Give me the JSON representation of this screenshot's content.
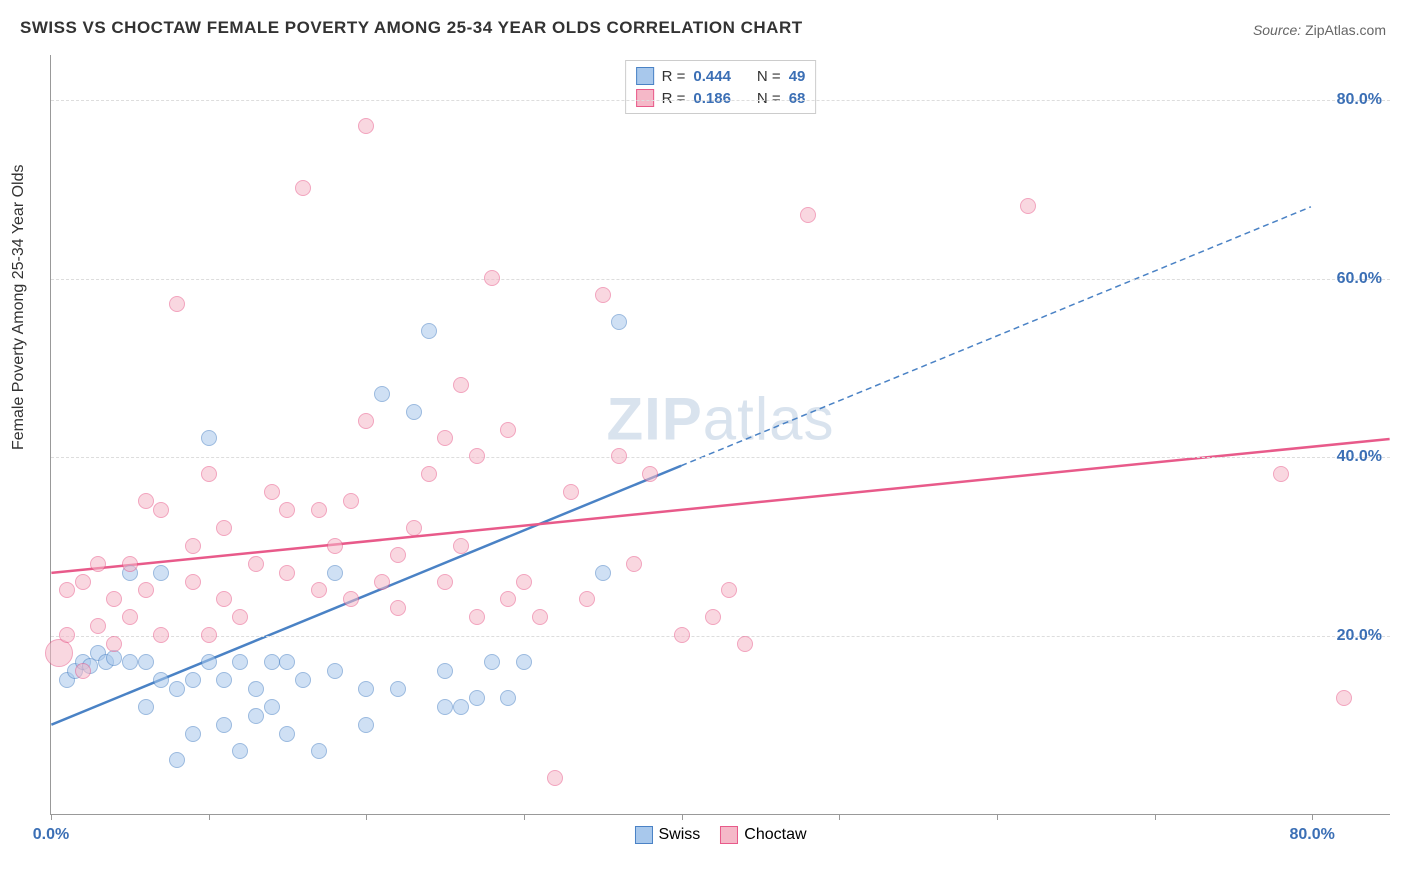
{
  "title": "SWISS VS CHOCTAW FEMALE POVERTY AMONG 25-34 YEAR OLDS CORRELATION CHART",
  "source": {
    "prefix": "Source: ",
    "name": "ZipAtlas.com"
  },
  "y_axis_label": "Female Poverty Among 25-34 Year Olds",
  "watermark": {
    "part1": "ZIP",
    "part2": "atlas"
  },
  "chart": {
    "type": "scatter",
    "xlim": [
      0,
      85
    ],
    "ylim": [
      0,
      85
    ],
    "x_ticks": [
      0,
      10,
      20,
      30,
      40,
      50,
      60,
      70,
      80
    ],
    "x_tick_labels": {
      "0": "0.0%",
      "80": "80.0%"
    },
    "y_gridlines": [
      20,
      40,
      60,
      80
    ],
    "y_tick_labels": {
      "20": "20.0%",
      "40": "40.0%",
      "60": "60.0%",
      "80": "80.0%"
    },
    "tick_label_color": "#3b6fb5",
    "grid_color": "#dddddd",
    "background_color": "#ffffff",
    "marker_radius": 8,
    "marker_opacity": 0.55,
    "series": [
      {
        "name": "Swiss",
        "color_fill": "#a8c8ec",
        "color_stroke": "#4a82c5",
        "r_value": "0.444",
        "n_value": "49",
        "trend": {
          "x1": 0,
          "y1": 10,
          "x2": 40,
          "y2": 39,
          "dash_extend_x": 80,
          "dash_extend_y": 68
        },
        "points": [
          {
            "x": 1,
            "y": 15
          },
          {
            "x": 1.5,
            "y": 16
          },
          {
            "x": 2,
            "y": 17
          },
          {
            "x": 2.5,
            "y": 16.5
          },
          {
            "x": 3,
            "y": 18
          },
          {
            "x": 3.5,
            "y": 17
          },
          {
            "x": 4,
            "y": 17.5
          },
          {
            "x": 5,
            "y": 17
          },
          {
            "x": 5,
            "y": 27
          },
          {
            "x": 6,
            "y": 17
          },
          {
            "x": 6,
            "y": 12
          },
          {
            "x": 7,
            "y": 27
          },
          {
            "x": 7,
            "y": 15
          },
          {
            "x": 8,
            "y": 14
          },
          {
            "x": 8,
            "y": 6
          },
          {
            "x": 9,
            "y": 15
          },
          {
            "x": 9,
            "y": 9
          },
          {
            "x": 10,
            "y": 42
          },
          {
            "x": 10,
            "y": 17
          },
          {
            "x": 11,
            "y": 15
          },
          {
            "x": 11,
            "y": 10
          },
          {
            "x": 12,
            "y": 7
          },
          {
            "x": 12,
            "y": 17
          },
          {
            "x": 13,
            "y": 11
          },
          {
            "x": 13,
            "y": 14
          },
          {
            "x": 14,
            "y": 17
          },
          {
            "x": 14,
            "y": 12
          },
          {
            "x": 15,
            "y": 9
          },
          {
            "x": 15,
            "y": 17
          },
          {
            "x": 16,
            "y": 15
          },
          {
            "x": 17,
            "y": 7
          },
          {
            "x": 18,
            "y": 27
          },
          {
            "x": 18,
            "y": 16
          },
          {
            "x": 20,
            "y": 10
          },
          {
            "x": 20,
            "y": 14
          },
          {
            "x": 21,
            "y": 47
          },
          {
            "x": 22,
            "y": 14
          },
          {
            "x": 23,
            "y": 45
          },
          {
            "x": 24,
            "y": 54
          },
          {
            "x": 25,
            "y": 12
          },
          {
            "x": 25,
            "y": 16
          },
          {
            "x": 26,
            "y": 12
          },
          {
            "x": 27,
            "y": 13
          },
          {
            "x": 28,
            "y": 17
          },
          {
            "x": 29,
            "y": 13
          },
          {
            "x": 30,
            "y": 17
          },
          {
            "x": 35,
            "y": 27
          },
          {
            "x": 36,
            "y": 55
          }
        ]
      },
      {
        "name": "Choctaw",
        "color_fill": "#f5b8c8",
        "color_stroke": "#e85a8a",
        "r_value": "0.186",
        "n_value": "68",
        "trend": {
          "x1": 0,
          "y1": 27,
          "x2": 85,
          "y2": 42
        },
        "points": [
          {
            "x": 0.5,
            "y": 18,
            "r": 14
          },
          {
            "x": 1,
            "y": 20
          },
          {
            "x": 1,
            "y": 25
          },
          {
            "x": 2,
            "y": 16
          },
          {
            "x": 2,
            "y": 26
          },
          {
            "x": 3,
            "y": 21
          },
          {
            "x": 3,
            "y": 28
          },
          {
            "x": 4,
            "y": 24
          },
          {
            "x": 4,
            "y": 19
          },
          {
            "x": 5,
            "y": 28
          },
          {
            "x": 5,
            "y": 22
          },
          {
            "x": 6,
            "y": 35
          },
          {
            "x": 6,
            "y": 25
          },
          {
            "x": 7,
            "y": 20
          },
          {
            "x": 7,
            "y": 34
          },
          {
            "x": 8,
            "y": 57
          },
          {
            "x": 9,
            "y": 30
          },
          {
            "x": 9,
            "y": 26
          },
          {
            "x": 10,
            "y": 20
          },
          {
            "x": 10,
            "y": 38
          },
          {
            "x": 11,
            "y": 24
          },
          {
            "x": 11,
            "y": 32
          },
          {
            "x": 12,
            "y": 22
          },
          {
            "x": 13,
            "y": 28
          },
          {
            "x": 14,
            "y": 36
          },
          {
            "x": 15,
            "y": 34
          },
          {
            "x": 15,
            "y": 27
          },
          {
            "x": 16,
            "y": 70
          },
          {
            "x": 17,
            "y": 25
          },
          {
            "x": 17,
            "y": 34
          },
          {
            "x": 18,
            "y": 30
          },
          {
            "x": 19,
            "y": 24
          },
          {
            "x": 19,
            "y": 35
          },
          {
            "x": 20,
            "y": 44
          },
          {
            "x": 20,
            "y": 77
          },
          {
            "x": 21,
            "y": 26
          },
          {
            "x": 22,
            "y": 29
          },
          {
            "x": 22,
            "y": 23
          },
          {
            "x": 23,
            "y": 32
          },
          {
            "x": 24,
            "y": 38
          },
          {
            "x": 25,
            "y": 42
          },
          {
            "x": 25,
            "y": 26
          },
          {
            "x": 26,
            "y": 48
          },
          {
            "x": 26,
            "y": 30
          },
          {
            "x": 27,
            "y": 22
          },
          {
            "x": 27,
            "y": 40
          },
          {
            "x": 28,
            "y": 60
          },
          {
            "x": 29,
            "y": 24
          },
          {
            "x": 29,
            "y": 43
          },
          {
            "x": 30,
            "y": 26
          },
          {
            "x": 31,
            "y": 22
          },
          {
            "x": 32,
            "y": 4
          },
          {
            "x": 33,
            "y": 36
          },
          {
            "x": 34,
            "y": 24
          },
          {
            "x": 35,
            "y": 58
          },
          {
            "x": 36,
            "y": 40
          },
          {
            "x": 37,
            "y": 28
          },
          {
            "x": 38,
            "y": 38
          },
          {
            "x": 40,
            "y": 20
          },
          {
            "x": 42,
            "y": 22
          },
          {
            "x": 43,
            "y": 25
          },
          {
            "x": 44,
            "y": 19
          },
          {
            "x": 48,
            "y": 67
          },
          {
            "x": 62,
            "y": 68
          },
          {
            "x": 78,
            "y": 38
          },
          {
            "x": 82,
            "y": 13
          }
        ]
      }
    ]
  },
  "legend_top": {
    "r_label": "R =",
    "n_label": "N ="
  },
  "legend_bottom_labels": [
    "Swiss",
    "Choctaw"
  ]
}
